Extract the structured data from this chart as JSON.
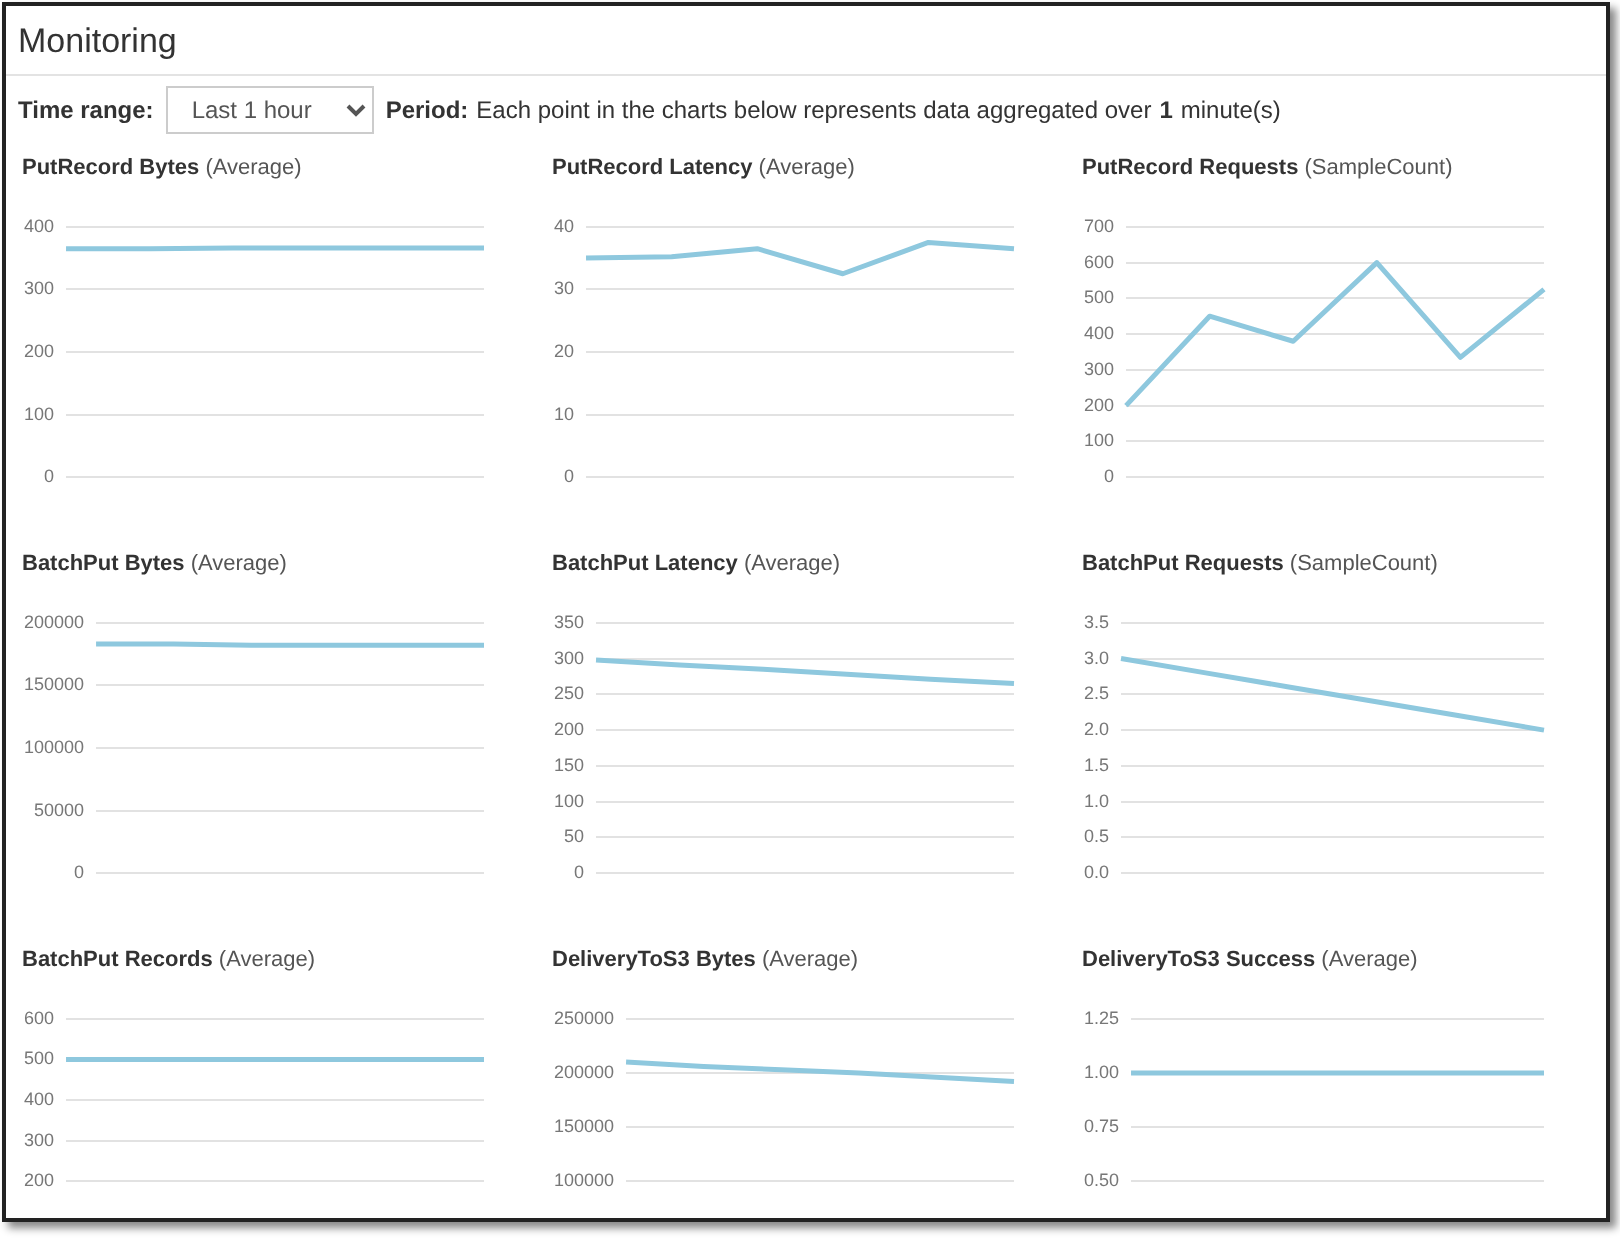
{
  "chart_data": [
    {
      "type": "other",
      "title": "Monitoring",
      "annotations": [
        "Time range:",
        "Last 1 hour",
        "Period:",
        "Each point in the charts below represents data aggregated over",
        "1",
        "minute(s)"
      ]
    },
    {
      "type": "line",
      "title": "PutRecord Bytes",
      "subtitle": "(Average)",
      "categories": [
        null,
        null,
        null,
        null,
        null,
        null
      ],
      "values": [
        365,
        365,
        366,
        366,
        366,
        366
      ],
      "color": "#8ec8de",
      "ylim": [
        0,
        400
      ],
      "yticks": [
        0,
        100,
        200,
        300,
        400
      ],
      "grid": "y",
      "tick_labels": "y",
      "marker": "none"
    },
    {
      "type": "line",
      "title": "PutRecord Latency",
      "subtitle": "(Average)",
      "categories": [
        null,
        null,
        null,
        null,
        null,
        null
      ],
      "values": [
        35,
        35.2,
        36.5,
        32.5,
        37.5,
        36.5
      ],
      "color": "#8ec8de",
      "ylim": [
        0,
        40
      ],
      "yticks": [
        0,
        10,
        20,
        30,
        40
      ],
      "grid": "y",
      "tick_labels": "y",
      "marker": "none"
    },
    {
      "type": "line",
      "title": "PutRecord Requests",
      "subtitle": "(SampleCount)",
      "categories": [
        null,
        null,
        null,
        null,
        null,
        null
      ],
      "values": [
        200,
        450,
        380,
        600,
        335,
        525
      ],
      "color": "#8ec8de",
      "ylim": [
        0,
        700
      ],
      "yticks": [
        0,
        100,
        200,
        300,
        400,
        500,
        600,
        700
      ],
      "grid": "y",
      "tick_labels": "y",
      "marker": "none"
    },
    {
      "type": "line",
      "title": "BatchPut Bytes",
      "subtitle": "(Average)",
      "categories": [
        null,
        null,
        null,
        null,
        null,
        null
      ],
      "values": [
        183000,
        183000,
        182000,
        182000,
        182000,
        182000
      ],
      "color": "#8ec8de",
      "ylim": [
        0,
        200000
      ],
      "yticks": [
        0,
        50000,
        100000,
        150000,
        200000
      ],
      "grid": "y",
      "tick_labels": "y",
      "marker": "none"
    },
    {
      "type": "line",
      "title": "BatchPut Latency",
      "subtitle": "(Average)",
      "categories": [
        null,
        null,
        null,
        null,
        null,
        null
      ],
      "values": [
        298,
        291,
        285,
        278,
        271,
        265
      ],
      "color": "#8ec8de",
      "ylim": [
        0,
        350
      ],
      "yticks": [
        0,
        50,
        100,
        150,
        200,
        250,
        300,
        350
      ],
      "grid": "y",
      "tick_labels": "y",
      "marker": "none"
    },
    {
      "type": "line",
      "title": "BatchPut Requests",
      "subtitle": "(SampleCount)",
      "categories": [
        null,
        null,
        null,
        null,
        null,
        null
      ],
      "values": [
        3,
        2.8,
        2.6,
        2.4,
        2.2,
        2
      ],
      "color": "#8ec8de",
      "ylim": [
        0,
        3.5
      ],
      "yticks": [
        {
          "value": 0,
          "label": "0.0"
        },
        0.5,
        {
          "value": 1,
          "label": "1.0"
        },
        1.5,
        {
          "value": 2,
          "label": "2.0"
        },
        2.5,
        {
          "value": 3,
          "label": "3.0"
        },
        3.5
      ],
      "grid": "y",
      "tick_labels": "y",
      "marker": "none"
    },
    {
      "type": "line",
      "title": "BatchPut Records",
      "subtitle": "(Average)",
      "categories": [
        null,
        null,
        null,
        null,
        null,
        null
      ],
      "values": [
        500,
        500,
        500,
        500,
        500,
        500
      ],
      "color": "#8ec8de",
      "ylim": [
        200,
        600
      ],
      "yticks": [
        200,
        300,
        400,
        500,
        600
      ],
      "grid": "y",
      "tick_labels": "y",
      "marker": "none"
    },
    {
      "type": "line",
      "title": "DeliveryToS3 Bytes",
      "subtitle": "(Average)",
      "categories": [
        null,
        null,
        null,
        null,
        null,
        null
      ],
      "values": [
        210000,
        206000,
        203000,
        200000,
        196000,
        192000
      ],
      "color": "#8ec8de",
      "ylim": [
        100000,
        250000
      ],
      "yticks": [
        100000,
        150000,
        200000,
        250000
      ],
      "grid": "y",
      "tick_labels": "y",
      "marker": "none"
    },
    {
      "type": "line",
      "title": "DeliveryToS3 Success",
      "subtitle": "(Average)",
      "categories": [
        null,
        null,
        null,
        null,
        null,
        null
      ],
      "values": [
        1,
        1,
        1,
        1,
        1,
        1
      ],
      "color": "#8ec8de",
      "ylim": [
        0.5,
        1.25
      ],
      "yticks": [
        {
          "value": 0.5,
          "label": "0.50"
        },
        0.75,
        {
          "value": 1,
          "label": "1.00"
        },
        1.25
      ],
      "grid": "y",
      "tick_labels": "y",
      "marker": "none"
    }
  ]
}
